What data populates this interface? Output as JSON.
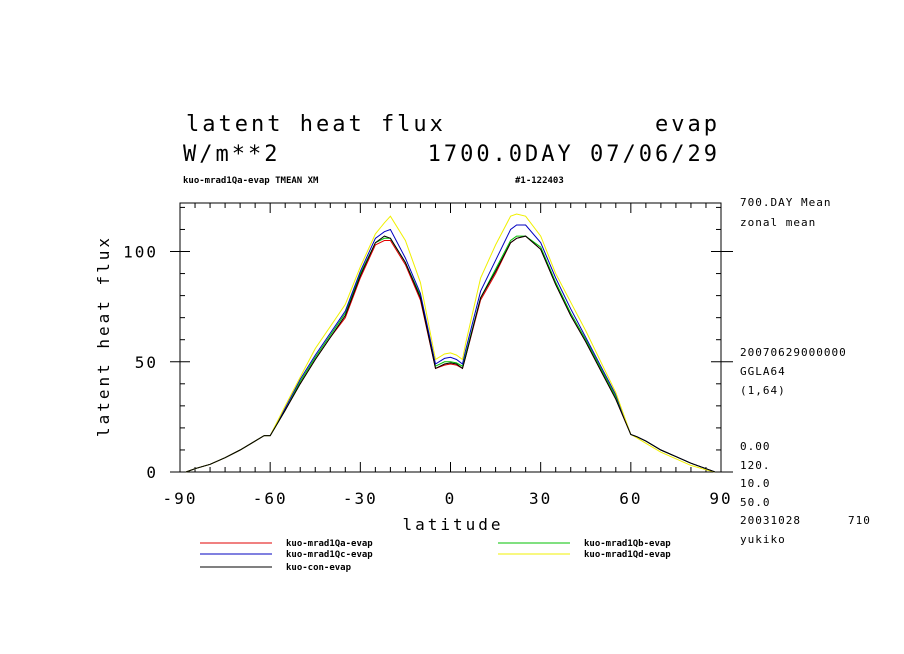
{
  "header": {
    "title_left": "latent heat flux",
    "title_right": "evap",
    "units": "W/m**2",
    "time_info": "1700.0DAY 07/06/29",
    "subtitle_left": "kuo-mrad1Qa-evap TMEAN XM",
    "subtitle_right": "#1-122403"
  },
  "side_info": {
    "top": [
      "700.DAY Mean",
      "zonal mean"
    ],
    "middle": [
      "20070629000000",
      "GGLA64",
      "(1,64)"
    ],
    "bottom": [
      "0.00",
      "120.",
      "10.0",
      "50.0"
    ],
    "date": "20031028",
    "number": "710",
    "user": "yukiko"
  },
  "colors": {
    "kuo-mrad1Qa-evap": "#e00000",
    "kuo-mrad1Qb-evap": "#00c000",
    "kuo-mrad1Qc-evap": "#0000c0",
    "kuo-mrad1Qd-evap": "#f0f000",
    "kuo-con-evap": "#000000"
  },
  "chart_data": {
    "type": "line",
    "xlabel": "latitude",
    "ylabel": "latent heat flux",
    "xlim": [
      -90,
      90
    ],
    "ylim": [
      0,
      122
    ],
    "xticks": [
      -90,
      -60,
      -30,
      0,
      30,
      60,
      90
    ],
    "xtick_labels": [
      "-90",
      "-60",
      "-30",
      "0",
      "30",
      "60",
      "90"
    ],
    "yticks": [
      0,
      50,
      100
    ],
    "ytick_labels": [
      "0",
      "50",
      "100"
    ],
    "x": [
      -88,
      -85,
      -80,
      -75,
      -70,
      -65,
      -62,
      -60,
      -55,
      -50,
      -45,
      -40,
      -35,
      -30,
      -25,
      -22,
      -20,
      -15,
      -10,
      -5,
      -2,
      0,
      2,
      4,
      5,
      10,
      15,
      20,
      22,
      25,
      30,
      35,
      40,
      45,
      50,
      55,
      60,
      62,
      65,
      70,
      75,
      80,
      85,
      88
    ],
    "series": [
      {
        "name": "kuo-mrad1Qa-evap",
        "values": [
          0,
          1.5,
          3.5,
          6.5,
          10,
          14,
          16.5,
          16.5,
          28,
          40,
          51,
          61,
          70,
          88,
          103,
          105,
          105,
          94,
          78,
          47,
          48.5,
          49,
          48.5,
          47,
          52,
          78,
          90,
          104,
          106,
          107,
          101,
          85,
          71,
          59,
          46,
          33,
          17,
          16,
          14,
          10,
          7,
          4,
          1.5,
          0
        ]
      },
      {
        "name": "kuo-mrad1Qb-evap",
        "values": [
          0,
          1.5,
          3.5,
          6.5,
          10,
          14,
          16.5,
          16.5,
          28,
          41,
          52,
          62,
          72,
          90,
          104,
          106,
          106,
          95,
          80,
          48,
          50,
          50,
          49.5,
          48,
          53,
          79,
          92,
          105,
          107,
          107,
          102,
          86,
          72,
          60,
          47,
          34,
          17,
          16,
          14,
          10,
          7,
          4,
          1.5,
          0
        ]
      },
      {
        "name": "kuo-mrad1Qc-evap",
        "values": [
          0,
          1.5,
          3.5,
          6.5,
          10,
          14,
          16.5,
          16.5,
          29,
          42,
          53,
          63,
          73,
          91,
          106,
          109,
          110,
          97,
          81,
          49,
          51.5,
          52,
          51,
          49,
          55,
          82,
          96,
          110,
          112,
          112,
          104,
          88,
          74,
          61,
          48,
          35,
          17,
          16,
          14,
          10,
          7,
          4,
          1.5,
          0
        ]
      },
      {
        "name": "kuo-mrad1Qd-evap",
        "values": [
          0,
          1.5,
          3.5,
          6.5,
          10,
          14,
          16.5,
          16.5,
          30,
          43,
          56,
          66,
          76,
          93,
          108,
          113,
          116,
          105,
          86,
          51,
          53.5,
          54,
          53,
          51,
          58,
          88,
          103,
          116,
          117,
          116,
          107,
          90,
          77,
          64,
          50,
          36,
          17,
          15.5,
          13,
          9,
          6,
          3,
          1,
          0
        ]
      },
      {
        "name": "kuo-con-evap",
        "values": [
          0,
          1.5,
          3.5,
          6.5,
          10,
          14,
          16.5,
          16.5,
          28,
          40,
          51,
          61,
          71,
          89,
          104,
          107,
          106,
          95,
          79,
          47,
          49,
          49.5,
          49,
          47,
          52,
          79,
          91,
          104,
          106,
          107,
          101,
          85,
          71,
          59,
          46,
          33,
          17,
          16,
          14,
          10,
          7,
          4,
          1.5,
          0
        ]
      }
    ],
    "legend": [
      {
        "name": "kuo-mrad1Qa-evap",
        "label": "kuo-mrad1Qa-evap"
      },
      {
        "name": "kuo-mrad1Qb-evap",
        "label": "kuo-mrad1Qb-evap"
      },
      {
        "name": "kuo-mrad1Qc-evap",
        "label": "kuo-mrad1Qc-evap"
      },
      {
        "name": "kuo-mrad1Qd-evap",
        "label": "kuo-mrad1Qd-evap"
      },
      {
        "name": "kuo-con-evap",
        "label": "kuo-con-evap"
      }
    ]
  }
}
